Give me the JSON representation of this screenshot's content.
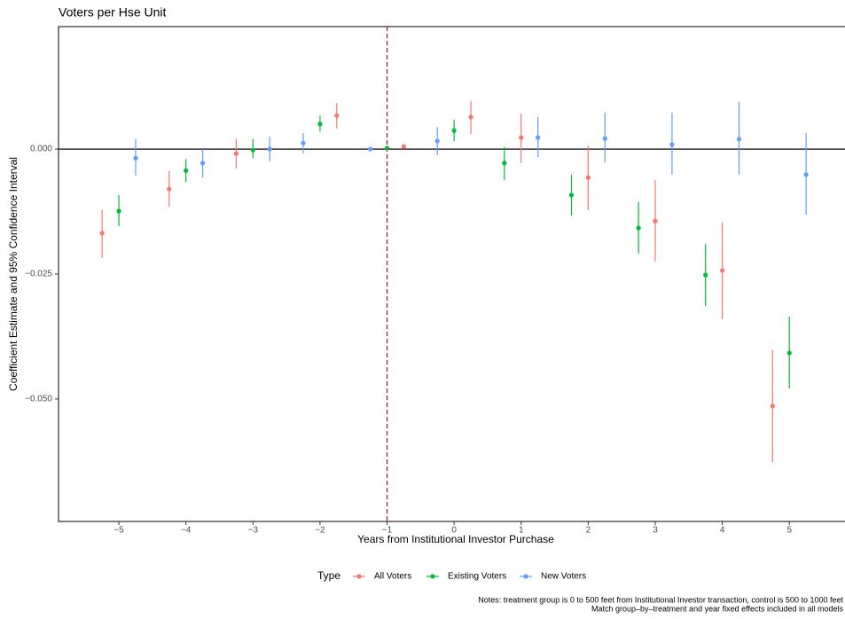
{
  "chart_data": {
    "type": "errorbar",
    "title": "Voters per Hse Unit",
    "x_label": "Years from Institutional Investor Purchase",
    "y_label": "Coefficient Estimate and 95% Confidence Interval",
    "legend_title": "Type",
    "notes": [
      "Notes: treatment group is 0 to 500 feet from Institutional Investor transaction, control is 500 to 1000 feet",
      "Match group–by–treatment and year fixed effects included in all models"
    ],
    "xlim": [
      -5.9,
      5.83
    ],
    "ylim": [
      -0.0745,
      0.0245
    ],
    "xticks": [
      {
        "value": -5,
        "label": "−5"
      },
      {
        "value": -4,
        "label": "−4"
      },
      {
        "value": -3,
        "label": "−3"
      },
      {
        "value": -2,
        "label": "−2"
      },
      {
        "value": -1,
        "label": "−1"
      },
      0,
      1,
      2,
      3,
      4,
      5
    ],
    "yticks": [
      {
        "value": -0.05,
        "label": "−0.050"
      },
      {
        "value": -0.025,
        "label": "−0.025"
      },
      {
        "value": 0,
        "label": "0.000"
      }
    ],
    "hline": 0,
    "vline": -1,
    "series": [
      {
        "name": "All Voters",
        "color": "#f8766d",
        "x": [
          -5.25,
          -4.25,
          -3.25,
          -1.75,
          -0.75,
          0.25,
          1,
          2,
          3,
          4,
          4.75
        ],
        "values": [
          -0.0168,
          -0.008,
          -0.0009,
          0.0067,
          0.0005,
          0.0064,
          0.0023,
          -0.0057,
          -0.0144,
          -0.0243,
          -0.0514
        ],
        "lower": [
          -0.0218,
          -0.0115,
          -0.0039,
          0.0041,
          null,
          0.003,
          -0.0028,
          -0.0122,
          -0.0225,
          -0.034,
          -0.0626
        ],
        "upper": [
          -0.0122,
          -0.0044,
          0.002,
          0.0092,
          null,
          0.0096,
          0.0071,
          0.0007,
          -0.0062,
          -0.0147,
          -0.0402
        ]
      },
      {
        "name": "Existing Voters",
        "color": "#00ba38",
        "x": [
          -5,
          -4,
          -3,
          -2,
          -1,
          0,
          0.75,
          1.75,
          2.75,
          3.75,
          5
        ],
        "values": [
          -0.0124,
          -0.0043,
          -0.0002,
          0.005,
          0.0002,
          0.0037,
          -0.0028,
          -0.0092,
          -0.0158,
          -0.0252,
          -0.0408
        ],
        "lower": [
          -0.0154,
          -0.0066,
          -0.0018,
          0.0035,
          null,
          0.0016,
          -0.0062,
          -0.0133,
          -0.0209,
          -0.0314,
          -0.0479
        ],
        "upper": [
          -0.0092,
          -0.002,
          0.002,
          0.0067,
          null,
          0.0059,
          0.0004,
          -0.0051,
          -0.0106,
          -0.019,
          -0.0335
        ]
      },
      {
        "name": "New Voters",
        "color": "#619cff",
        "x": [
          -4.75,
          -3.75,
          -2.75,
          -2.25,
          -1.25,
          -0.25,
          1.25,
          2.25,
          3.25,
          4.25,
          5.25
        ],
        "values": [
          -0.0018,
          -0.0028,
          0,
          0.0012,
          0,
          0.0016,
          0.0023,
          0.0021,
          0.0009,
          0.002,
          -0.0051
        ],
        "lower": [
          -0.0053,
          -0.0057,
          -0.0025,
          -0.0009,
          null,
          -0.0012,
          -0.0016,
          -0.0027,
          -0.0051,
          -0.0051,
          -0.0131
        ],
        "upper": [
          0.002,
          0,
          0.0025,
          0.0032,
          null,
          0.0044,
          0.0064,
          0.0073,
          0.0073,
          0.0094,
          0.0032
        ]
      }
    ]
  }
}
